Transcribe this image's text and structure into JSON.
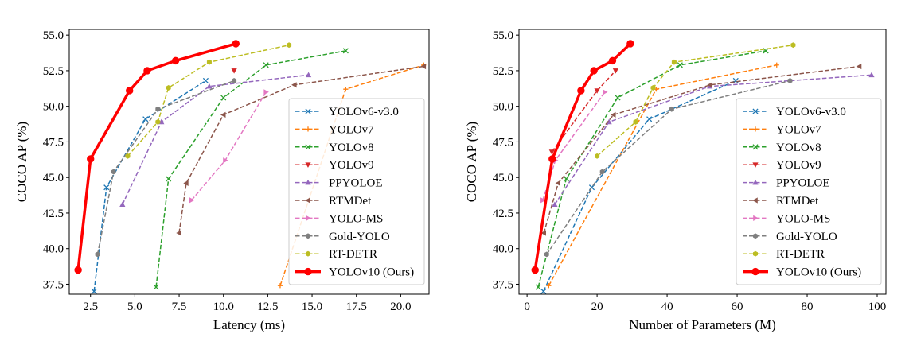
{
  "chart_data": [
    {
      "type": "line",
      "xlabel": "Latency (ms)",
      "ylabel": "COCO AP (%)",
      "xlim": [
        1.3,
        21.6
      ],
      "ylim": [
        36.8,
        55.4
      ],
      "xticks": [
        2.5,
        5.0,
        7.5,
        10.0,
        12.5,
        15.0,
        17.5,
        20.0
      ],
      "xtick_labels": [
        "2.5",
        "5.0",
        "7.5",
        "10.0",
        "12.5",
        "15.0",
        "17.5",
        "20.0"
      ],
      "yticks": [
        37.5,
        40.0,
        42.5,
        45.0,
        47.5,
        50.0,
        52.5,
        55.0
      ],
      "ytick_labels": [
        "37.5",
        "40.0",
        "42.5",
        "45.0",
        "47.5",
        "50.0",
        "52.5",
        "55.0"
      ],
      "grid": false,
      "legend": "lower-right",
      "series": [
        {
          "name": "YOLOv6-v3.0",
          "color": "#1f77b4",
          "marker": "x",
          "x": [
            2.7,
            3.4,
            5.6,
            9.0
          ],
          "y": [
            37.0,
            44.3,
            49.1,
            51.8
          ]
        },
        {
          "name": "YOLOv7",
          "color": "#ff7f0e",
          "marker": "plus",
          "x": [
            13.2,
            16.9,
            21.3
          ],
          "y": [
            37.4,
            51.2,
            52.9
          ]
        },
        {
          "name": "YOLOv8",
          "color": "#2ca02c",
          "marker": "x",
          "x": [
            6.2,
            6.9,
            10.0,
            12.4,
            16.9
          ],
          "y": [
            37.3,
            44.9,
            50.6,
            52.9,
            53.9
          ]
        },
        {
          "name": "YOLOv9",
          "color": "#d62728",
          "marker": "triangle-down",
          "x": [
            10.6
          ],
          "y": [
            52.5
          ]
        },
        {
          "name": "PPYOLOE",
          "color": "#9467bd",
          "marker": "triangle-up",
          "x": [
            4.3,
            6.5,
            9.2,
            14.8
          ],
          "y": [
            43.1,
            48.9,
            51.4,
            52.2
          ]
        },
        {
          "name": "RTMDet",
          "color": "#8c564b",
          "marker": "triangle-left",
          "x": [
            7.5,
            7.9,
            10.0,
            14.0,
            21.3
          ],
          "y": [
            41.1,
            44.6,
            49.4,
            51.5,
            52.8
          ]
        },
        {
          "name": "YOLO-MS",
          "color": "#e377c2",
          "marker": "triangle-right",
          "x": [
            8.2,
            10.1,
            12.4
          ],
          "y": [
            43.4,
            46.2,
            51.0
          ]
        },
        {
          "name": "Gold-YOLO",
          "color": "#7f7f7f",
          "marker": "hexagon",
          "x": [
            2.9,
            3.8,
            6.3,
            10.6
          ],
          "y": [
            39.6,
            45.4,
            49.8,
            51.8
          ]
        },
        {
          "name": "RT-DETR",
          "color": "#bcbd22",
          "marker": "hexagon",
          "x": [
            4.6,
            6.3,
            6.9,
            9.2,
            13.7
          ],
          "y": [
            46.5,
            48.9,
            51.3,
            53.1,
            54.3
          ]
        },
        {
          "name": "YOLOv10 (Ours)",
          "color": "#ff0000",
          "marker": "circle",
          "emphasis": true,
          "x": [
            1.8,
            2.5,
            4.7,
            5.7,
            7.3,
            10.7
          ],
          "y": [
            38.5,
            46.3,
            51.1,
            52.5,
            53.2,
            54.4
          ]
        }
      ]
    },
    {
      "type": "line",
      "xlabel": "Number of Parameters (M)",
      "ylabel": "COCO AP (%)",
      "xlim": [
        -2.3,
        102.5
      ],
      "ylim": [
        36.8,
        55.4
      ],
      "xticks": [
        0,
        20,
        40,
        60,
        80,
        100
      ],
      "xtick_labels": [
        "0",
        "20",
        "40",
        "60",
        "80",
        "100"
      ],
      "yticks": [
        37.5,
        40.0,
        42.5,
        45.0,
        47.5,
        50.0,
        52.5,
        55.0
      ],
      "ytick_labels": [
        "37.5",
        "40.0",
        "42.5",
        "45.0",
        "47.5",
        "50.0",
        "52.5",
        "55.0"
      ],
      "grid": false,
      "legend": "lower-right",
      "series": [
        {
          "name": "YOLOv6-v3.0",
          "color": "#1f77b4",
          "marker": "x",
          "x": [
            4.7,
            18.5,
            34.9,
            59.6
          ],
          "y": [
            37.0,
            44.3,
            49.1,
            51.8
          ]
        },
        {
          "name": "YOLOv7",
          "color": "#ff7f0e",
          "marker": "plus",
          "x": [
            6.2,
            36.9,
            71.3
          ],
          "y": [
            37.4,
            51.2,
            52.9
          ]
        },
        {
          "name": "YOLOv8",
          "color": "#2ca02c",
          "marker": "x",
          "x": [
            3.2,
            11.2,
            25.9,
            43.7,
            68.2
          ],
          "y": [
            37.3,
            44.9,
            50.6,
            52.9,
            53.9
          ]
        },
        {
          "name": "YOLOv9",
          "color": "#d62728",
          "marker": "triangle-down",
          "x": [
            7.1,
            20.0,
            25.3
          ],
          "y": [
            46.8,
            51.1,
            52.5
          ]
        },
        {
          "name": "PPYOLOE",
          "color": "#9467bd",
          "marker": "triangle-up",
          "x": [
            7.9,
            23.4,
            52.2,
            98.4
          ],
          "y": [
            43.1,
            48.9,
            51.4,
            52.2
          ]
        },
        {
          "name": "RTMDet",
          "color": "#8c564b",
          "marker": "triangle-left",
          "x": [
            4.8,
            8.9,
            24.7,
            52.3,
            94.9
          ],
          "y": [
            41.1,
            44.6,
            49.4,
            51.5,
            52.8
          ]
        },
        {
          "name": "YOLO-MS",
          "color": "#e377c2",
          "marker": "triangle-right",
          "x": [
            4.5,
            8.1,
            22.2
          ],
          "y": [
            43.4,
            46.2,
            51.0
          ]
        },
        {
          "name": "Gold-YOLO",
          "color": "#7f7f7f",
          "marker": "hexagon",
          "x": [
            5.6,
            21.5,
            41.3,
            75.1
          ],
          "y": [
            39.6,
            45.4,
            49.8,
            51.8
          ]
        },
        {
          "name": "RT-DETR",
          "color": "#bcbd22",
          "marker": "hexagon",
          "x": [
            20.0,
            31.0,
            36.0,
            42.0,
            76.0
          ],
          "y": [
            46.5,
            48.9,
            51.3,
            53.1,
            54.3
          ]
        },
        {
          "name": "YOLOv10 (Ours)",
          "color": "#ff0000",
          "marker": "circle",
          "emphasis": true,
          "x": [
            2.3,
            7.2,
            15.4,
            19.1,
            24.4,
            29.5
          ],
          "y": [
            38.5,
            46.3,
            51.1,
            52.5,
            53.2,
            54.4
          ]
        }
      ]
    }
  ]
}
